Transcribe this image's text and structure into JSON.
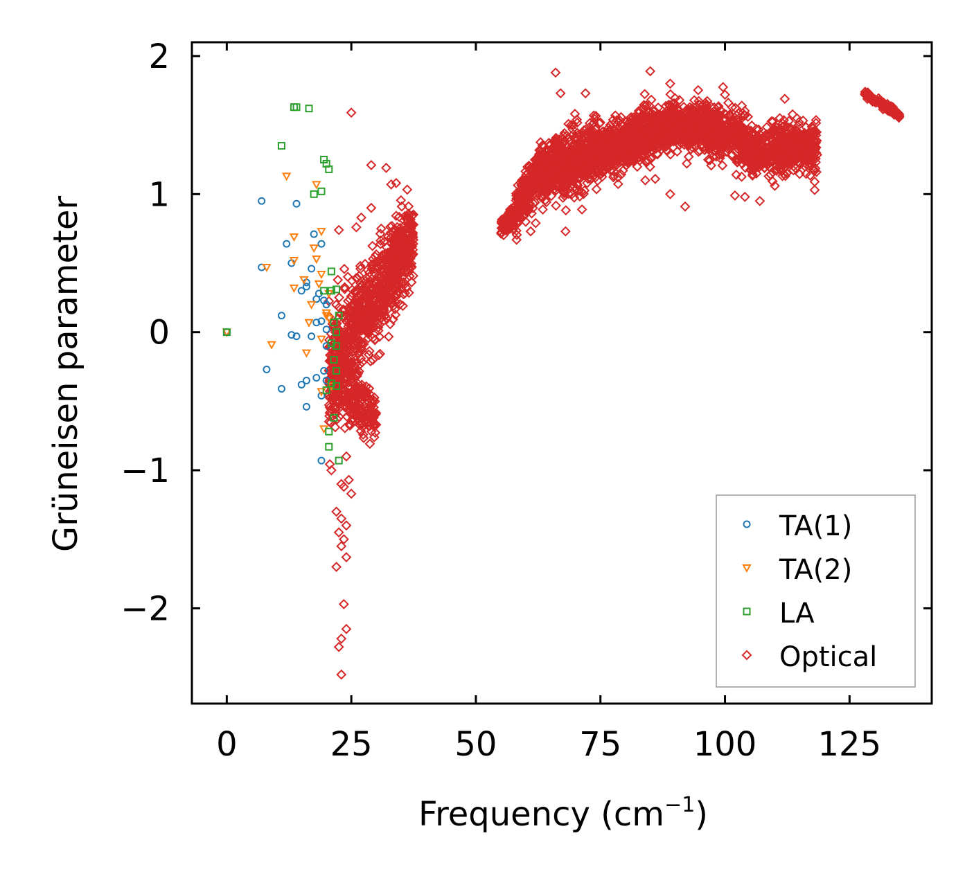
{
  "chart_data": {
    "type": "scatter",
    "title": "",
    "xlabel_main": "Frequency (cm",
    "xlabel_sup": "−1",
    "xlabel_close": ")",
    "ylabel": "Grüneisen parameter",
    "xlim": [
      -7,
      141.5
    ],
    "ylim": [
      -2.69,
      2.1
    ],
    "xticks": [
      0,
      25,
      50,
      75,
      100,
      125
    ],
    "xtick_labels": [
      "0",
      "25",
      "50",
      "75",
      "100",
      "125"
    ],
    "yticks": [
      -2,
      -1,
      0,
      1,
      2
    ],
    "ytick_labels": [
      "−2",
      "−1",
      "0",
      "1",
      "2"
    ],
    "legend_position": "lower right",
    "series": [
      {
        "name": "TA(1)",
        "marker": "circle",
        "color": "#1f77b4",
        "points": [
          [
            0,
            0
          ],
          [
            7,
            0.95
          ],
          [
            7,
            0.47
          ],
          [
            8,
            -0.27
          ],
          [
            11,
            -0.41
          ],
          [
            11,
            0.12
          ],
          [
            12,
            0.64
          ],
          [
            13,
            -0.02
          ],
          [
            13,
            0.5
          ],
          [
            14,
            0.93
          ],
          [
            14,
            -0.03
          ],
          [
            15,
            -0.38
          ],
          [
            15,
            0.3
          ],
          [
            16,
            0.36
          ],
          [
            16,
            0.33
          ],
          [
            16,
            -0.54
          ],
          [
            16,
            -0.35
          ],
          [
            17,
            0.46
          ],
          [
            17,
            -0.03
          ],
          [
            17.5,
            0.71
          ],
          [
            18,
            -0.33
          ],
          [
            18,
            0.07
          ],
          [
            18,
            0.24
          ],
          [
            18.5,
            0.28
          ],
          [
            19,
            0.64
          ],
          [
            19,
            0.08
          ],
          [
            19,
            -0.46
          ],
          [
            19,
            -0.93
          ],
          [
            19.5,
            0.23
          ],
          [
            19.5,
            -0.28
          ],
          [
            20,
            -0.1
          ],
          [
            20,
            0.02
          ],
          [
            20,
            0.2
          ],
          [
            20,
            -0.35
          ]
        ]
      },
      {
        "name": "TA(2)",
        "marker": "triangle-down",
        "color": "#ff7f0e",
        "points": [
          [
            0,
            0
          ],
          [
            8,
            0.47
          ],
          [
            9,
            -0.09
          ],
          [
            12,
            1.13
          ],
          [
            13.5,
            0.69
          ],
          [
            13.5,
            0.52
          ],
          [
            13.5,
            0.32
          ],
          [
            15.5,
            0.38
          ],
          [
            16,
            -0.15
          ],
          [
            16.5,
            0.07
          ],
          [
            17,
            0.2
          ],
          [
            17.5,
            0.61
          ],
          [
            18,
            1.07
          ],
          [
            18,
            0.53
          ],
          [
            18.5,
            0.35
          ],
          [
            19,
            0.73
          ],
          [
            19,
            0.42
          ],
          [
            19,
            -0.05
          ],
          [
            19,
            -0.43
          ],
          [
            19.5,
            -0.7
          ],
          [
            20,
            0.14
          ],
          [
            20,
            0.12
          ],
          [
            20.5,
            0.1
          ],
          [
            20.5,
            0.28
          ],
          [
            21,
            -0.39
          ]
        ]
      },
      {
        "name": "LA",
        "marker": "square",
        "color": "#2ca02c",
        "points": [
          [
            0,
            0
          ],
          [
            11,
            1.35
          ],
          [
            13.5,
            1.63
          ],
          [
            14,
            1.63
          ],
          [
            16.5,
            1.62
          ],
          [
            17.5,
            1.0
          ],
          [
            19,
            1.02
          ],
          [
            19.5,
            1.25
          ],
          [
            20,
            1.22
          ],
          [
            20.5,
            1.18
          ],
          [
            19.5,
            0.3
          ],
          [
            20,
            -0.42
          ],
          [
            20.5,
            -0.83
          ],
          [
            21,
            0.44
          ],
          [
            21,
            0.3
          ],
          [
            21,
            -0.37
          ],
          [
            21.5,
            0.07
          ],
          [
            21.5,
            -0.2
          ],
          [
            21.5,
            -0.62
          ],
          [
            22,
            0.0
          ],
          [
            22,
            -0.1
          ],
          [
            22,
            0.31
          ],
          [
            22,
            -0.39
          ],
          [
            22.5,
            -0.93
          ],
          [
            22.5,
            0.12
          ],
          [
            20.5,
            -0.72
          ],
          [
            21,
            -0.08
          ],
          [
            22,
            -0.28
          ]
        ]
      },
      {
        "name": "Optical",
        "marker": "diamond",
        "color": "#d62728",
        "points": [
          [
            25,
            1.59
          ],
          [
            29,
            1.21
          ],
          [
            32,
            1.19
          ],
          [
            33,
            1.07
          ],
          [
            34,
            1.08
          ],
          [
            29,
            0.9
          ],
          [
            27,
            0.83
          ],
          [
            26,
            0.76
          ],
          [
            31,
            0.75
          ],
          [
            36,
            0.71
          ],
          [
            22.5,
            0.74
          ],
          [
            24,
            -0.9
          ],
          [
            23,
            -1.1
          ],
          [
            23.5,
            -1.12
          ],
          [
            24.5,
            -1.07
          ],
          [
            25,
            -1.17
          ],
          [
            22,
            -1.3
          ],
          [
            23,
            -1.35
          ],
          [
            24,
            -1.4
          ],
          [
            22.5,
            -1.45
          ],
          [
            23.5,
            -1.5
          ],
          [
            23,
            -1.55
          ],
          [
            24,
            -1.63
          ],
          [
            22,
            -1.7
          ],
          [
            23.5,
            -1.97
          ],
          [
            24,
            -2.15
          ],
          [
            23,
            -2.22
          ],
          [
            22.5,
            -2.28
          ],
          [
            23,
            -2.48
          ],
          [
            30,
            -0.67
          ],
          [
            28,
            -0.6
          ],
          [
            21,
            -1.0
          ],
          [
            66,
            1.88
          ],
          [
            67,
            1.73
          ],
          [
            72,
            1.73
          ],
          [
            85,
            1.89
          ],
          [
            89,
            1.8
          ],
          [
            100,
            1.72
          ],
          [
            112,
            1.69
          ],
          [
            68,
            0.73
          ],
          [
            60,
            0.8
          ],
          [
            62,
            0.79
          ],
          [
            61,
            0.73
          ],
          [
            74,
            1.12
          ],
          [
            84,
            1.1
          ],
          [
            86,
            1.11
          ],
          [
            89,
            1.0
          ],
          [
            92,
            0.91
          ],
          [
            102,
            0.99
          ],
          [
            104,
            0.98
          ],
          [
            107,
            0.95
          ],
          [
            110,
            1.06
          ],
          [
            118,
            1.03
          ],
          [
            118,
            1.09
          ],
          [
            113,
            1.25
          ],
          [
            117,
            1.2
          ],
          [
            111,
            1.55
          ]
        ],
        "clusters": [
          {
            "x_range": [
              20.5,
              37.5
            ],
            "y_center": [
              -0.3,
              0.7
            ],
            "y_spread": [
              0.35,
              0.25
            ],
            "count": 900
          },
          {
            "x_range": [
              20.5,
              30
            ],
            "y_center": [
              -0.4,
              -0.6
            ],
            "y_spread": [
              0.25,
              0.15
            ],
            "count": 250
          },
          {
            "x_range": [
              55,
              58
            ],
            "y_center": [
              0.75,
              0.85
            ],
            "y_spread": [
              0.06,
              0.06
            ],
            "count": 120
          },
          {
            "x_range": [
              58,
              63
            ],
            "y_center": [
              0.88,
              1.2
            ],
            "y_spread": [
              0.12,
              0.15
            ],
            "count": 260
          },
          {
            "x_range": [
              63,
              75
            ],
            "y_center": [
              1.15,
              1.3
            ],
            "y_spread": [
              0.2,
              0.2
            ],
            "count": 700
          },
          {
            "x_range": [
              75,
              90
            ],
            "y_center": [
              1.3,
              1.52
            ],
            "y_spread": [
              0.15,
              0.15
            ],
            "count": 900
          },
          {
            "x_range": [
              90,
              105
            ],
            "y_center": [
              1.5,
              1.4
            ],
            "y_spread": [
              0.15,
              0.17
            ],
            "count": 700
          },
          {
            "x_range": [
              105,
              118.5
            ],
            "y_center": [
              1.3,
              1.35
            ],
            "y_spread": [
              0.15,
              0.15
            ],
            "count": 600
          },
          {
            "x_range": [
              128,
              135
            ],
            "y_center": [
              1.73,
              1.57
            ],
            "y_spread": [
              0.02,
              0.02
            ],
            "count": 120
          }
        ]
      }
    ]
  },
  "legend": {
    "items": [
      {
        "label": "TA(1)",
        "marker": "circle",
        "color": "#1f77b4"
      },
      {
        "label": "TA(2)",
        "marker": "triangle-down",
        "color": "#ff7f0e"
      },
      {
        "label": "LA",
        "marker": "square",
        "color": "#2ca02c"
      },
      {
        "label": "Optical",
        "marker": "diamond",
        "color": "#d62728"
      }
    ]
  }
}
